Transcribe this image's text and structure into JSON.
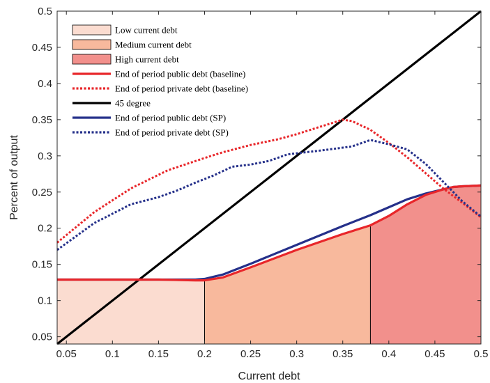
{
  "chart_data": {
    "type": "area",
    "xlabel": "Current debt",
    "ylabel": "Percent of output",
    "xlim": [
      0.04,
      0.5
    ],
    "ylim": [
      0.04,
      0.5
    ],
    "xticks": [
      "0.05",
      "0.1",
      "0.15",
      "0.2",
      "0.25",
      "0.3",
      "0.35",
      "0.4",
      "0.45",
      "0.5"
    ],
    "yticks": [
      "0.05",
      "0.1",
      "0.15",
      "0.2",
      "0.25",
      "0.3",
      "0.35",
      "0.4",
      "0.45",
      "0.5"
    ],
    "legend_placement": "top-left",
    "regions": [
      {
        "name": "Low current debt",
        "color": "#fbdcd0",
        "x": [
          0.04,
          0.2
        ]
      },
      {
        "name": "Medium current debt",
        "color": "#f8b99d",
        "x": [
          0.2,
          0.38
        ]
      },
      {
        "name": "High current debt",
        "color": "#f2908c",
        "x": [
          0.38,
          0.5
        ]
      }
    ],
    "series": [
      {
        "name": "End of period public debt (baseline)",
        "color": "#e8262a",
        "style": "solid",
        "x": [
          0.04,
          0.1,
          0.15,
          0.19,
          0.2,
          0.22,
          0.25,
          0.3,
          0.35,
          0.38,
          0.4,
          0.42,
          0.44,
          0.46,
          0.47,
          0.48,
          0.5
        ],
        "y": [
          0.129,
          0.129,
          0.129,
          0.128,
          0.128,
          0.132,
          0.146,
          0.17,
          0.192,
          0.204,
          0.217,
          0.233,
          0.246,
          0.254,
          0.257,
          0.258,
          0.259
        ]
      },
      {
        "name": "End of period private debt (baseline)",
        "color": "#e8262a",
        "style": "dotted",
        "x": [
          0.04,
          0.08,
          0.12,
          0.16,
          0.2,
          0.22,
          0.25,
          0.28,
          0.3,
          0.32,
          0.35,
          0.36,
          0.38,
          0.4,
          0.42,
          0.44,
          0.46,
          0.48,
          0.5
        ],
        "y": [
          0.18,
          0.222,
          0.255,
          0.28,
          0.297,
          0.305,
          0.315,
          0.323,
          0.33,
          0.338,
          0.35,
          0.348,
          0.336,
          0.318,
          0.298,
          0.276,
          0.254,
          0.235,
          0.215
        ]
      },
      {
        "name": "45 degree",
        "color": "#000000",
        "style": "solid",
        "x": [
          0.04,
          0.5
        ],
        "y": [
          0.04,
          0.5
        ]
      },
      {
        "name": "End of period public debt (SP)",
        "color": "#25308a",
        "style": "solid",
        "x": [
          0.04,
          0.1,
          0.15,
          0.19,
          0.2,
          0.22,
          0.25,
          0.3,
          0.35,
          0.38,
          0.4,
          0.42,
          0.44,
          0.46,
          0.47,
          0.48,
          0.5
        ],
        "y": [
          0.129,
          0.129,
          0.129,
          0.129,
          0.13,
          0.136,
          0.151,
          0.177,
          0.203,
          0.218,
          0.229,
          0.24,
          0.248,
          0.254,
          0.257,
          0.258,
          0.259
        ]
      },
      {
        "name": "End of period private debt (SP)",
        "color": "#25308a",
        "style": "dotted",
        "x": [
          0.04,
          0.08,
          0.12,
          0.15,
          0.17,
          0.19,
          0.21,
          0.23,
          0.25,
          0.27,
          0.29,
          0.31,
          0.33,
          0.36,
          0.38,
          0.4,
          0.42,
          0.44,
          0.46,
          0.48,
          0.5
        ],
        "y": [
          0.17,
          0.207,
          0.233,
          0.243,
          0.252,
          0.263,
          0.273,
          0.285,
          0.288,
          0.293,
          0.302,
          0.305,
          0.308,
          0.313,
          0.322,
          0.316,
          0.309,
          0.289,
          0.263,
          0.237,
          0.216
        ]
      }
    ]
  }
}
